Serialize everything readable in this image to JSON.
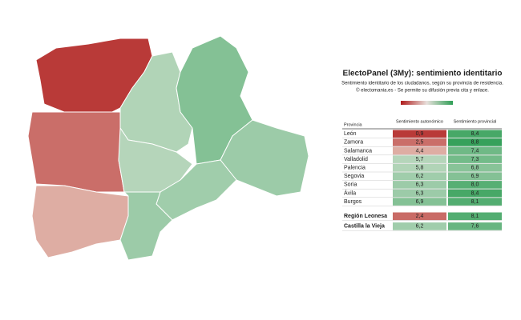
{
  "title": "ElectoPanel (3My): sentimiento identitario",
  "subtitle": "Sentimiento identitario de los ciudadanos, según su provincia de residencia.",
  "credit": "© electomania.es - Se permite su difusión previa cita y enlace.",
  "table": {
    "headers": [
      "Provincia",
      "Sentimiento autonómico",
      "Sentimiento provincial"
    ],
    "rows": [
      [
        "León",
        "0,9",
        "8,4"
      ],
      [
        "Zamora",
        "2,5",
        "8,8"
      ],
      [
        "Salamanca",
        "4,4",
        "7,4"
      ],
      [
        "Valladolid",
        "5,7",
        "7,3"
      ],
      [
        "Palencia",
        "5,8",
        "6,8"
      ],
      [
        "Segovia",
        "6,2",
        "6,9"
      ],
      [
        "Soria",
        "6,3",
        "8,0"
      ],
      [
        "Ávila",
        "6,3",
        "8,4"
      ],
      [
        "Burgos",
        "6,9",
        "8,1"
      ]
    ],
    "summary_rows": [
      [
        "Región Leonesa",
        "2,4",
        "8,1"
      ],
      [
        "Castilla la Vieja",
        "6,2",
        "7,6"
      ]
    ]
  }
}
